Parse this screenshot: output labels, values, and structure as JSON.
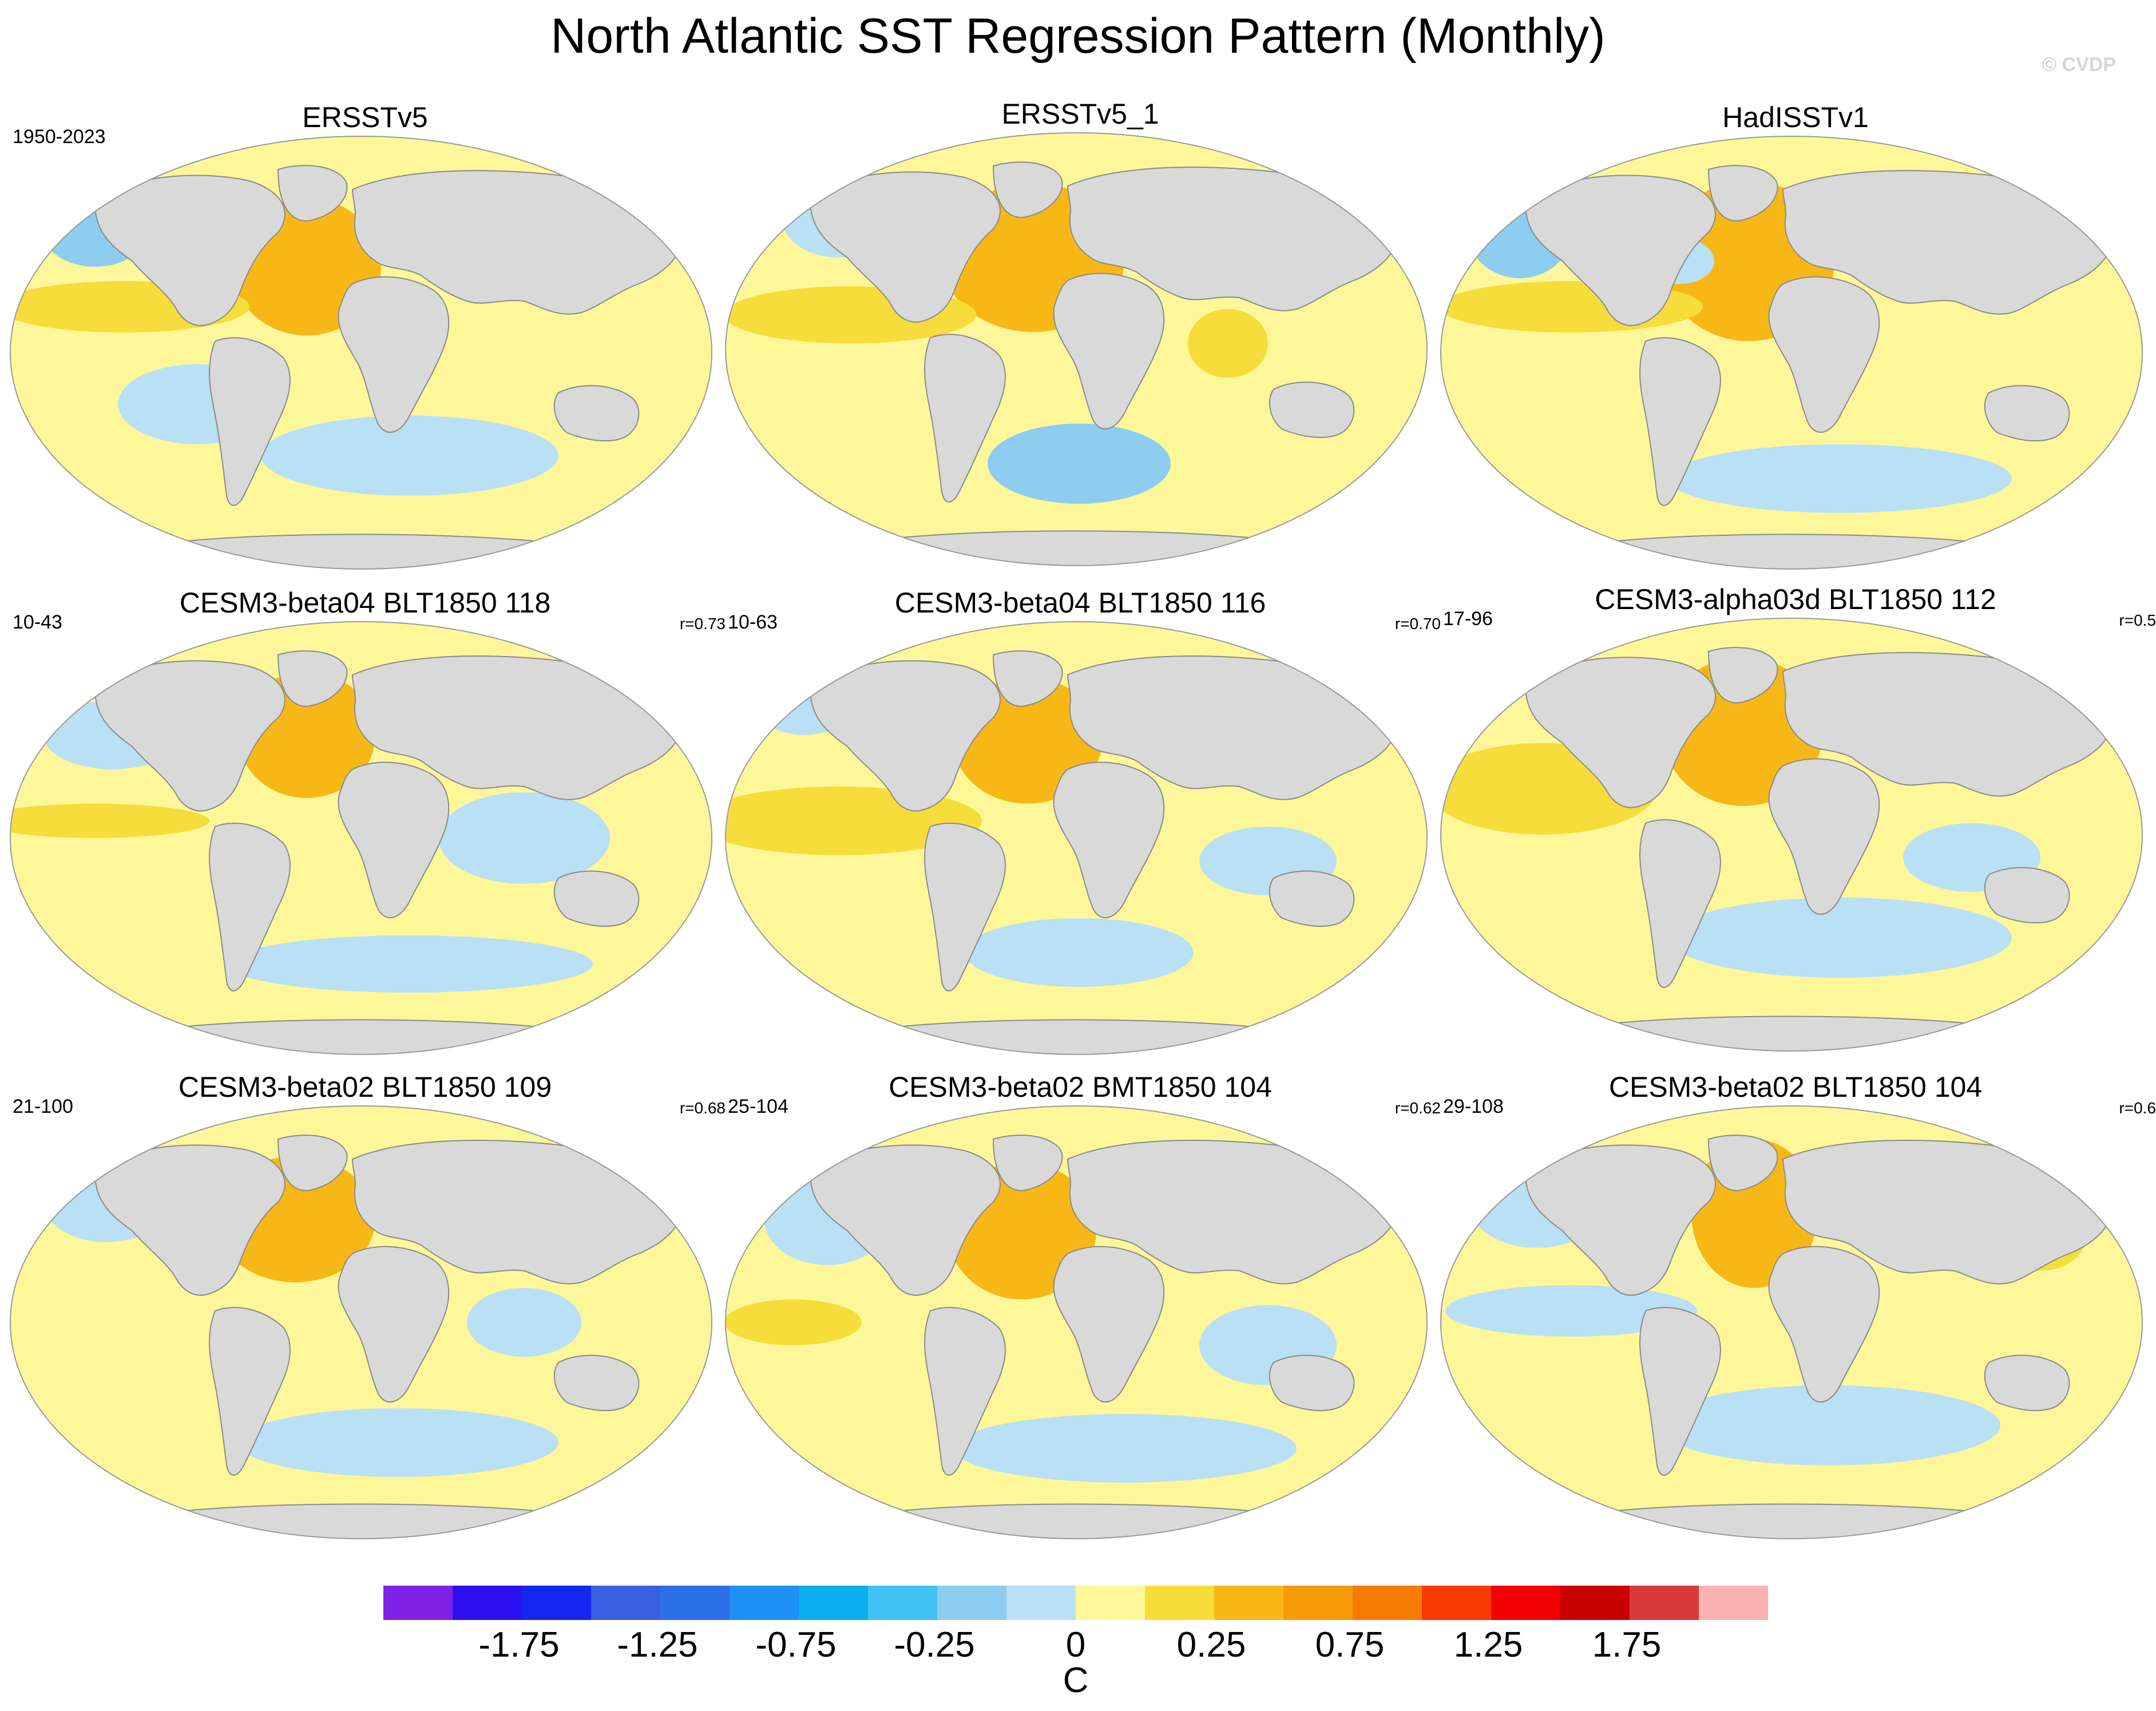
{
  "figure": {
    "title": "North Atlantic SST Regression Pattern (Monthly)",
    "watermark": "© CVDP"
  },
  "panels": [
    {
      "title": "ERSSTv5",
      "years": "1950-2023",
      "r": ""
    },
    {
      "title": "ERSSTv5_1",
      "years": "",
      "r": ""
    },
    {
      "title": "HadISSTv1",
      "years": "",
      "r": ""
    },
    {
      "title": "CESM3-beta04 BLT1850 118",
      "years": "10-43",
      "r": "r=0.73"
    },
    {
      "title": "CESM3-beta04 BLT1850 116",
      "years": "10-63",
      "r": "r=0.70"
    },
    {
      "title": "CESM3-alpha03d BLT1850 112",
      "years": "17-96",
      "r": "r=0.5"
    },
    {
      "title": "CESM3-beta02 BLT1850 109",
      "years": "21-100",
      "r": "r=0.68"
    },
    {
      "title": "CESM3-beta02 BMT1850 104",
      "years": "25-104",
      "r": "r=0.62"
    },
    {
      "title": "CESM3-beta02 BLT1850 104",
      "years": "29-108",
      "r": "r=0.6"
    }
  ],
  "colorbar": {
    "units": "C",
    "labels": [
      "-1.75",
      "-1.25",
      "-0.75",
      "-0.25",
      "0",
      "0.25",
      "0.75",
      "1.25",
      "1.75"
    ],
    "colors": [
      "#7f22e8",
      "#2d10f0",
      "#1426f0",
      "#3a5ee0",
      "#2c6fe8",
      "#1f90f5",
      "#0aafef",
      "#40c2f5",
      "#8ccdf0",
      "#b9e0f4",
      "#fdf79a",
      "#f6dd3c",
      "#f7b817",
      "#f79b09",
      "#f77b00",
      "#f73a00",
      "#f30000",
      "#c80000",
      "#d83a3a",
      "#fbb2b2"
    ]
  },
  "map_colors": {
    "land": "#d9d9d9",
    "neutral_warm": "#fdf79a",
    "neutral_cool": "#b9e0f4",
    "warm": "#f6dd3c",
    "warmer": "#f7b817",
    "cool": "#8ccdf0"
  }
}
